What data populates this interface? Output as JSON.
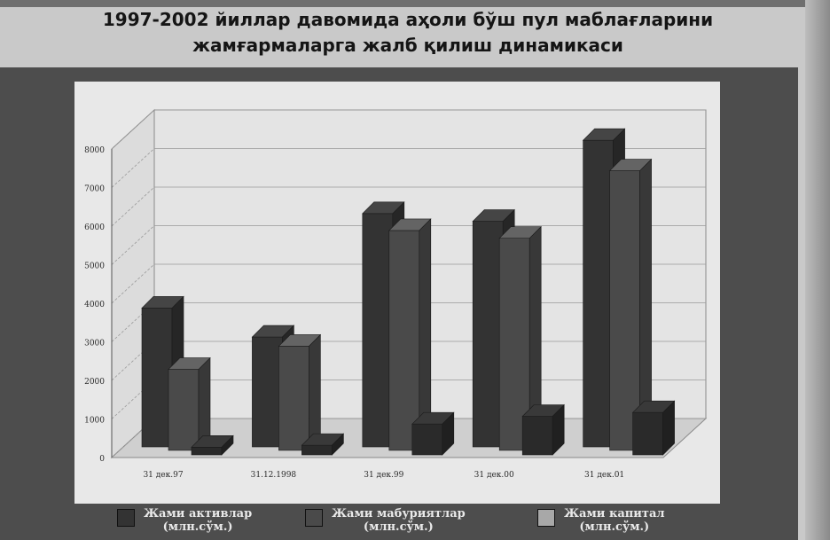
{
  "title_line1": "1997-2002 йиллар давомида аҳоли бўш пул маблағларини",
  "title_line2": "жамғармаларга жалб қилиш динамикаси",
  "chart_data": {
    "type": "bar",
    "categories": [
      "31 дек.97",
      "31.12.1998",
      "31 дек.99",
      "31 дек.00",
      "31 дек.01"
    ],
    "series": [
      {
        "name": "Жами активлар (млн.сўм.)",
        "values": [
          3600,
          2850,
          6050,
          5850,
          7950
        ],
        "color": "#333333"
      },
      {
        "name": "Жами мабуриятлар (млн.сўм.)",
        "values": [
          2100,
          2700,
          5700,
          5500,
          7250
        ],
        "color": "#4a4a4a"
      },
      {
        "name": "Жами капитал (млн.сўм.)",
        "values": [
          200,
          250,
          800,
          1000,
          1100
        ],
        "color": "#2a2a2a"
      }
    ],
    "yticks": [
      "0",
      "1000",
      "2000",
      "3000",
      "4000",
      "5000",
      "6000",
      "7000",
      "8000"
    ],
    "ylim": [
      0,
      8000
    ],
    "grid": true,
    "legend_position": "bottom"
  },
  "legend": [
    {
      "line1": "Жами активлар",
      "line2": "(млн.сўм.)"
    },
    {
      "line1": "Жами мабуриятлар",
      "line2": "(млн.сўм.)"
    },
    {
      "line1": "Жами капитал",
      "line2": "(млн.сўм.)"
    }
  ]
}
